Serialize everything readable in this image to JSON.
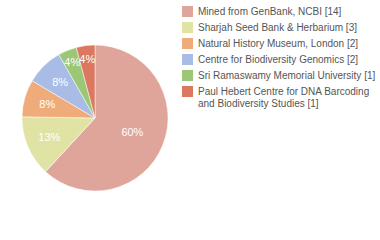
{
  "chart_data": {
    "type": "pie",
    "categories": [
      "Mined from GenBank, NCBI [14]",
      "Sharjah Seed Bank & Herbarium [3]",
      "Natural History Museum, London [2]",
      "Centre for Biodiversity Genomics [2]",
      "Sri Ramaswamy Memorial University [1]",
      "Paul Hebert Centre for DNA Barcoding and Biodiversity Studies [1]"
    ],
    "values": [
      60,
      13,
      8,
      8,
      4,
      4
    ],
    "value_labels": [
      "60%",
      "13%",
      "8%",
      "8%",
      "4%",
      "4%"
    ],
    "colors": [
      "#dfa59b",
      "#e1e3a4",
      "#efac7a",
      "#a8bce6",
      "#9cc777",
      "#dc7860"
    ],
    "data_labels": true,
    "legend": "right"
  }
}
